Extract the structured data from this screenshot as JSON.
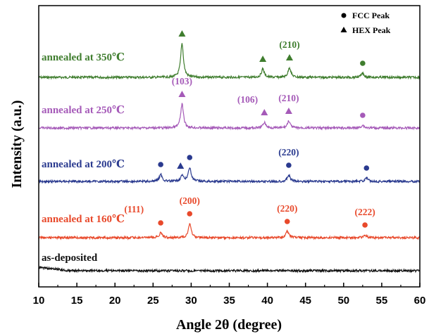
{
  "chart_data": {
    "type": "line",
    "xlabel": "Angle 2θ (degree)",
    "ylabel": "Intensity (a.u.)",
    "xlim": [
      10,
      60
    ],
    "xticks": [
      10,
      15,
      20,
      25,
      30,
      35,
      40,
      45,
      50,
      55,
      60
    ],
    "grid": false,
    "legend": [
      {
        "marker": "circle",
        "label": "FCC Peak"
      },
      {
        "marker": "triangle",
        "label": "HEX Peak"
      }
    ],
    "series": [
      {
        "name": "annealed at 350℃",
        "color": "#3f7d2e",
        "peaks": [
          {
            "x": 28.8,
            "h": 48
          },
          {
            "x": 39.4,
            "h": 12
          },
          {
            "x": 42.9,
            "h": 14
          },
          {
            "x": 52.5,
            "h": 6
          }
        ],
        "markers": [
          {
            "x": 28.8,
            "type": "triangle"
          },
          {
            "x": 39.4,
            "type": "triangle"
          },
          {
            "x": 42.9,
            "type": "triangle"
          },
          {
            "x": 52.5,
            "type": "circle"
          }
        ],
        "annotations": [
          {
            "x": 42.9,
            "text": "(210)"
          }
        ]
      },
      {
        "name": "annealed at 250℃",
        "color": "#a55ab8",
        "peaks": [
          {
            "x": 28.8,
            "h": 34
          },
          {
            "x": 39.6,
            "h": 8
          },
          {
            "x": 42.8,
            "h": 10
          },
          {
            "x": 52.5,
            "h": 4
          }
        ],
        "markers": [
          {
            "x": 28.8,
            "type": "triangle"
          },
          {
            "x": 39.6,
            "type": "triangle"
          },
          {
            "x": 42.8,
            "type": "triangle"
          },
          {
            "x": 52.5,
            "type": "circle"
          }
        ],
        "annotations": [
          {
            "x": 28.8,
            "text": "(103)"
          },
          {
            "x": 37.4,
            "text": "(106)"
          },
          {
            "x": 42.8,
            "text": "(210)"
          }
        ]
      },
      {
        "name": "annealed at 200℃",
        "color": "#2a3a8f",
        "peaks": [
          {
            "x": 26.0,
            "h": 10
          },
          {
            "x": 28.8,
            "h": 8
          },
          {
            "x": 29.8,
            "h": 20
          },
          {
            "x": 42.8,
            "h": 9
          },
          {
            "x": 53.0,
            "h": 5
          }
        ],
        "markers": [
          {
            "x": 26.0,
            "type": "circle"
          },
          {
            "x": 28.6,
            "type": "triangle"
          },
          {
            "x": 29.8,
            "type": "circle"
          },
          {
            "x": 42.8,
            "type": "circle"
          },
          {
            "x": 53.0,
            "type": "circle"
          }
        ],
        "annotations": [
          {
            "x": 42.8,
            "text": "(220)"
          }
        ]
      },
      {
        "name": "annealed at 160℃",
        "color": "#e8492b",
        "peaks": [
          {
            "x": 26.0,
            "h": 7
          },
          {
            "x": 29.8,
            "h": 20
          },
          {
            "x": 42.6,
            "h": 9
          },
          {
            "x": 52.8,
            "h": 4
          }
        ],
        "markers": [
          {
            "x": 26.0,
            "type": "circle"
          },
          {
            "x": 29.8,
            "type": "circle"
          },
          {
            "x": 42.6,
            "type": "circle"
          },
          {
            "x": 52.8,
            "type": "circle"
          }
        ],
        "annotations": [
          {
            "x": 22.5,
            "text": "(111)"
          },
          {
            "x": 29.8,
            "text": "(200)"
          },
          {
            "x": 42.6,
            "text": "(220)"
          },
          {
            "x": 52.8,
            "text": "(222)"
          }
        ]
      },
      {
        "name": "as-deposited",
        "color": "#111111",
        "peaks": [],
        "markers": [],
        "annotations": []
      }
    ]
  }
}
